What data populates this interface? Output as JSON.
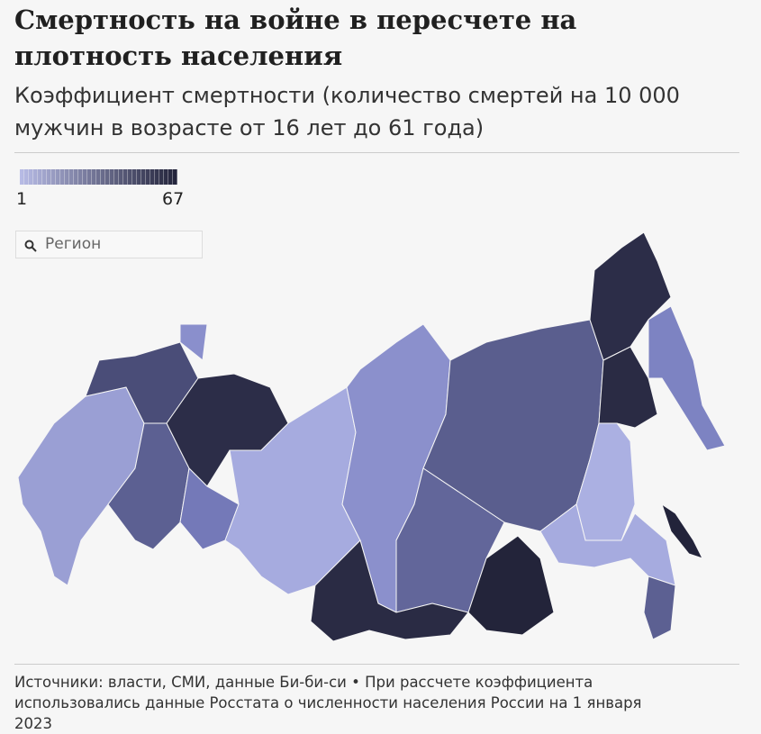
{
  "header": {
    "title": "Смертность на войне в пересчете на плотность населения",
    "subtitle": "Коэффициент смертности (количество смертей на 10 000 мужчин в возрасте от 16 лет до 61 года)"
  },
  "legend": {
    "min": 1,
    "max": 67,
    "color_min": "#b8bce6",
    "color_max": "#22233a"
  },
  "search": {
    "placeholder": "Регион"
  },
  "footer": {
    "source": "Источники: власти, СМИ, данные Би-би-си • При рассчете коэффициента использовались данные Росстата о численности населения России на 1 января 2023"
  }
}
